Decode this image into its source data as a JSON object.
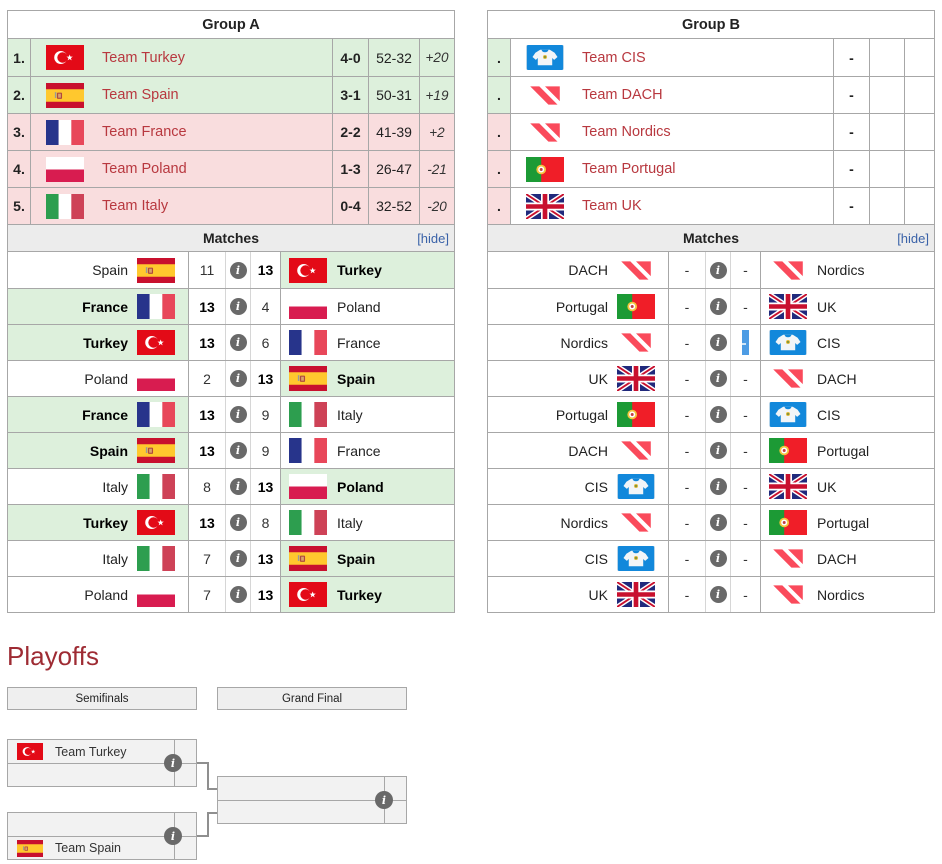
{
  "icons": {
    "info_glyph": "i"
  },
  "colors": {
    "win_green": "#DDF0DC",
    "loss_pink": "#F9DDDE",
    "team_link_red": "#B8383F",
    "heading_red": "#9E2B33",
    "hide_link_blue": "#3A62A8",
    "valorant_red": "#FA4A5B",
    "cis_blue": "#1288DB",
    "info_gray": "#696969",
    "artifact_blue": "#4D9CE4"
  },
  "groups": [
    {
      "title": "Group A",
      "matches_title": "Matches",
      "hide_label": "[hide]",
      "standings": [
        {
          "pos": "1.",
          "team": "Team Turkey",
          "flag": "tr",
          "record": "4-0",
          "score": "52-32",
          "diff": "+20",
          "status": "up"
        },
        {
          "pos": "2.",
          "team": "Team Spain",
          "flag": "es",
          "record": "3-1",
          "score": "50-31",
          "diff": "+19",
          "status": "up"
        },
        {
          "pos": "3.",
          "team": "Team France",
          "flag": "fr",
          "record": "2-2",
          "score": "41-39",
          "diff": "+2",
          "status": "down"
        },
        {
          "pos": "4.",
          "team": "Team Poland",
          "flag": "pl",
          "record": "1-3",
          "score": "26-47",
          "diff": "-21",
          "status": "down"
        },
        {
          "pos": "5.",
          "team": "Team Italy",
          "flag": "it",
          "record": "0-4",
          "score": "32-52",
          "diff": "-20",
          "status": "down"
        }
      ],
      "matches": [
        {
          "left": {
            "name": "Spain",
            "flag": "es",
            "winner": false
          },
          "score_left": "11",
          "score_right": "13",
          "right": {
            "name": "Turkey",
            "flag": "tr",
            "winner": true
          }
        },
        {
          "left": {
            "name": "France",
            "flag": "fr",
            "winner": true
          },
          "score_left": "13",
          "score_right": "4",
          "right": {
            "name": "Poland",
            "flag": "pl",
            "winner": false
          }
        },
        {
          "left": {
            "name": "Turkey",
            "flag": "tr",
            "winner": true
          },
          "score_left": "13",
          "score_right": "6",
          "right": {
            "name": "France",
            "flag": "fr",
            "winner": false
          }
        },
        {
          "left": {
            "name": "Poland",
            "flag": "pl",
            "winner": false
          },
          "score_left": "2",
          "score_right": "13",
          "right": {
            "name": "Spain",
            "flag": "es",
            "winner": true
          }
        },
        {
          "left": {
            "name": "France",
            "flag": "fr",
            "winner": true
          },
          "score_left": "13",
          "score_right": "9",
          "right": {
            "name": "Italy",
            "flag": "it",
            "winner": false
          }
        },
        {
          "left": {
            "name": "Spain",
            "flag": "es",
            "winner": true
          },
          "score_left": "13",
          "score_right": "9",
          "right": {
            "name": "France",
            "flag": "fr",
            "winner": false
          }
        },
        {
          "left": {
            "name": "Italy",
            "flag": "it",
            "winner": false
          },
          "score_left": "8",
          "score_right": "13",
          "right": {
            "name": "Poland",
            "flag": "pl",
            "winner": true
          }
        },
        {
          "left": {
            "name": "Turkey",
            "flag": "tr",
            "winner": true
          },
          "score_left": "13",
          "score_right": "8",
          "right": {
            "name": "Italy",
            "flag": "it",
            "winner": false
          }
        },
        {
          "left": {
            "name": "Italy",
            "flag": "it",
            "winner": false
          },
          "score_left": "7",
          "score_right": "13",
          "right": {
            "name": "Spain",
            "flag": "es",
            "winner": true
          }
        },
        {
          "left": {
            "name": "Poland",
            "flag": "pl",
            "winner": false
          },
          "score_left": "7",
          "score_right": "13",
          "right": {
            "name": "Turkey",
            "flag": "tr",
            "winner": true
          }
        }
      ]
    },
    {
      "title": "Group B",
      "matches_title": "Matches",
      "hide_label": "[hide]",
      "standings": [
        {
          "pos": ".",
          "team": "Team CIS",
          "flag": "cis",
          "record": "-",
          "score": "",
          "diff": "",
          "status": "up"
        },
        {
          "pos": ".",
          "team": "Team DACH",
          "flag": "val",
          "record": "-",
          "score": "",
          "diff": "",
          "status": "up"
        },
        {
          "pos": ".",
          "team": "Team Nordics",
          "flag": "val",
          "record": "-",
          "score": "",
          "diff": "",
          "status": "down"
        },
        {
          "pos": ".",
          "team": "Team Portugal",
          "flag": "pt",
          "record": "-",
          "score": "",
          "diff": "",
          "status": "down"
        },
        {
          "pos": ".",
          "team": "Team UK",
          "flag": "gb",
          "record": "-",
          "score": "",
          "diff": "",
          "status": "down"
        }
      ],
      "matches": [
        {
          "left": {
            "name": "DACH",
            "flag": "val",
            "winner": false
          },
          "score_left": "-",
          "score_right": "-",
          "right": {
            "name": "Nordics",
            "flag": "val",
            "winner": false
          }
        },
        {
          "left": {
            "name": "Portugal",
            "flag": "pt",
            "winner": false
          },
          "score_left": "-",
          "score_right": "-",
          "right": {
            "name": "UK",
            "flag": "gb",
            "winner": false
          }
        },
        {
          "left": {
            "name": "Nordics",
            "flag": "val",
            "winner": false
          },
          "score_left": "-",
          "score_right": "-",
          "artifact": true,
          "right": {
            "name": "CIS",
            "flag": "cis",
            "winner": false
          }
        },
        {
          "left": {
            "name": "UK",
            "flag": "gb",
            "winner": false
          },
          "score_left": "-",
          "score_right": "-",
          "right": {
            "name": "DACH",
            "flag": "val",
            "winner": false
          }
        },
        {
          "left": {
            "name": "Portugal",
            "flag": "pt",
            "winner": false
          },
          "score_left": "-",
          "score_right": "-",
          "right": {
            "name": "CIS",
            "flag": "cis",
            "winner": false
          }
        },
        {
          "left": {
            "name": "DACH",
            "flag": "val",
            "winner": false
          },
          "score_left": "-",
          "score_right": "-",
          "right": {
            "name": "Portugal",
            "flag": "pt",
            "winner": false
          }
        },
        {
          "left": {
            "name": "CIS",
            "flag": "cis",
            "winner": false
          },
          "score_left": "-",
          "score_right": "-",
          "right": {
            "name": "UK",
            "flag": "gb",
            "winner": false
          }
        },
        {
          "left": {
            "name": "Nordics",
            "flag": "val",
            "winner": false
          },
          "score_left": "-",
          "score_right": "-",
          "right": {
            "name": "Portugal",
            "flag": "pt",
            "winner": false
          }
        },
        {
          "left": {
            "name": "CIS",
            "flag": "cis",
            "winner": false
          },
          "score_left": "-",
          "score_right": "-",
          "right": {
            "name": "DACH",
            "flag": "val",
            "winner": false
          }
        },
        {
          "left": {
            "name": "UK",
            "flag": "gb",
            "winner": false
          },
          "score_left": "-",
          "score_right": "-",
          "right": {
            "name": "Nordics",
            "flag": "val",
            "winner": false
          }
        }
      ]
    }
  ],
  "playoffs": {
    "title": "Playoffs",
    "rounds": [
      "Semifinals",
      "Grand Final"
    ],
    "semifinal1": {
      "top": {
        "name": "Team Turkey",
        "flag": "tr"
      },
      "bottom": {
        "name": "",
        "flag": ""
      }
    },
    "semifinal2": {
      "top": {
        "name": "",
        "flag": ""
      },
      "bottom": {
        "name": "Team Spain",
        "flag": "es"
      }
    },
    "grand_final": {
      "top": {
        "name": "",
        "flag": ""
      },
      "bottom": {
        "name": "",
        "flag": ""
      }
    }
  }
}
